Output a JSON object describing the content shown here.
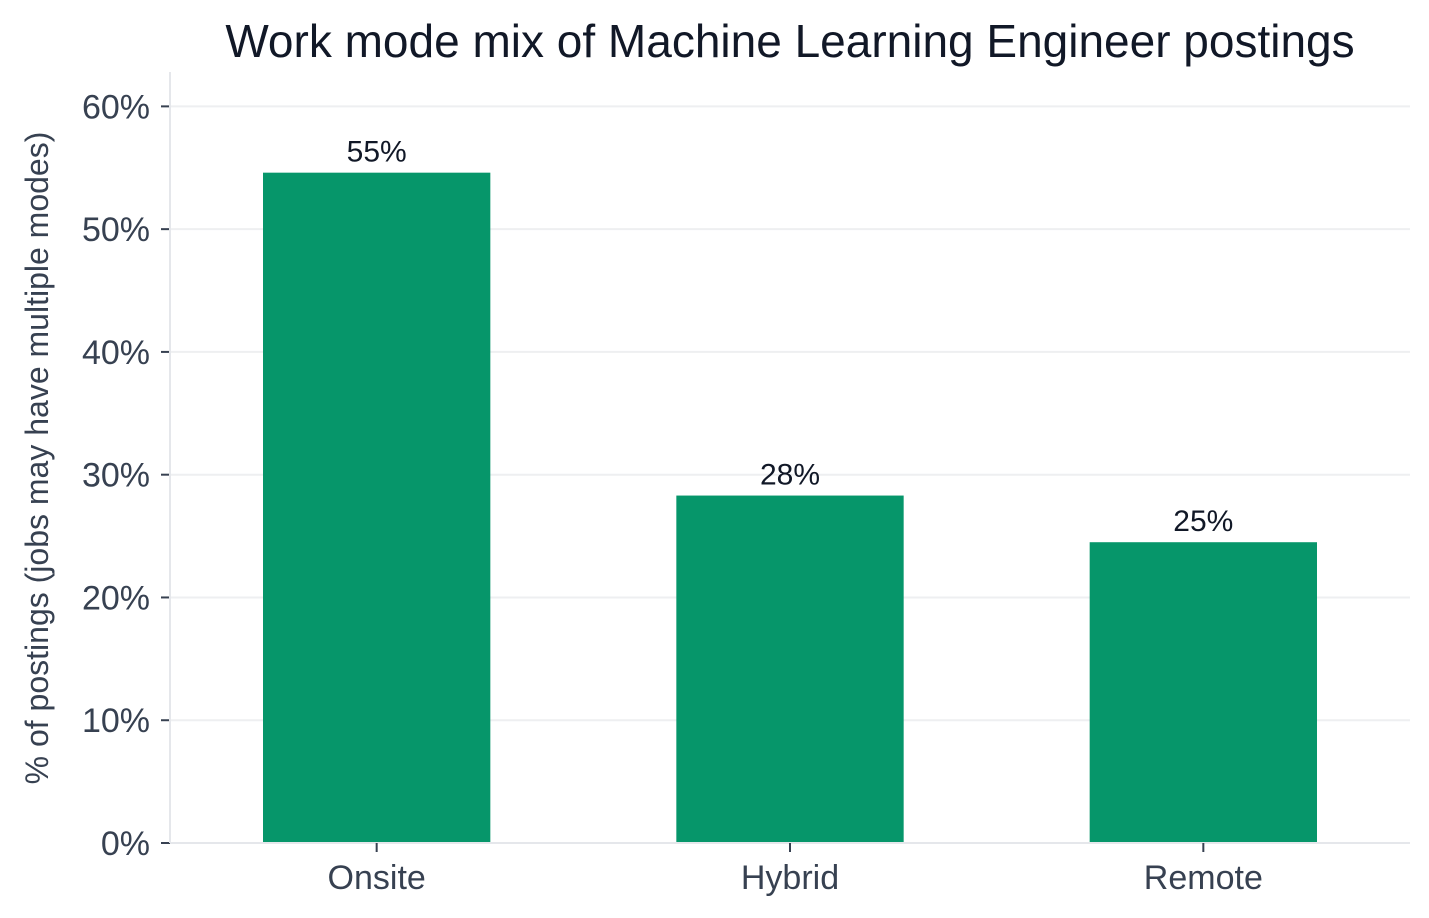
{
  "chart_data": {
    "type": "bar",
    "title": "Work mode mix of Machine Learning Engineer postings",
    "xlabel": "",
    "ylabel": "% of postings (jobs may have multiple modes)",
    "categories": [
      "Onsite",
      "Hybrid",
      "Remote"
    ],
    "values": [
      54.6,
      28.3,
      24.5
    ],
    "data_labels": [
      "55%",
      "28%",
      "25%"
    ],
    "ylim": [
      0,
      62.8
    ],
    "yticks": [
      0,
      10,
      20,
      30,
      40,
      50,
      60
    ],
    "ytick_labels": [
      "0%",
      "10%",
      "20%",
      "30%",
      "40%",
      "50%",
      "60%"
    ],
    "grid": "horizontal",
    "bar_color": "#06966a"
  }
}
